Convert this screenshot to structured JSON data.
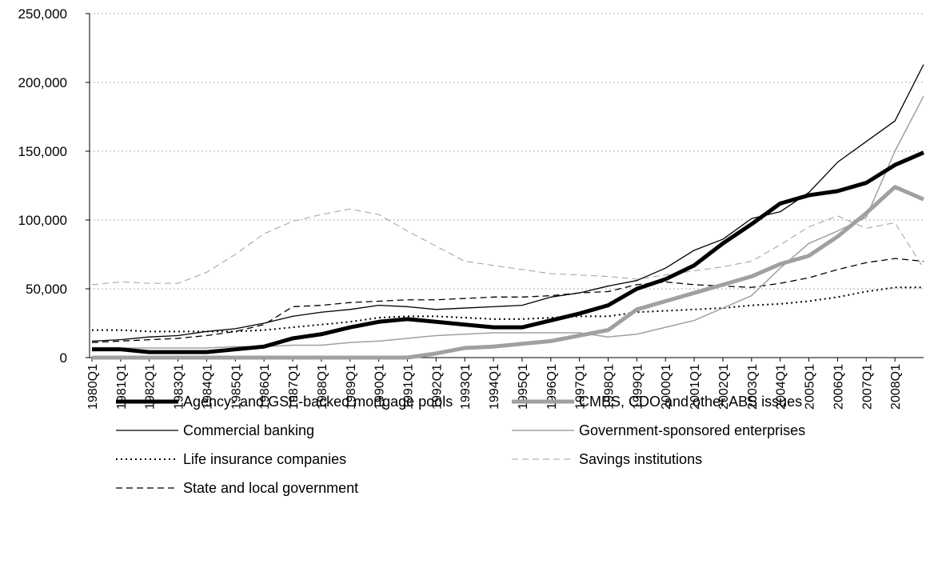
{
  "chart_data": {
    "type": "line",
    "categories": [
      "1980Q1",
      "1981Q1",
      "1982Q1",
      "1983Q1",
      "1984Q1",
      "1985Q1",
      "1986Q1",
      "1987Q1",
      "1988Q1",
      "1989Q1",
      "1990Q1",
      "1991Q1",
      "1992Q1",
      "1993Q1",
      "1994Q1",
      "1995Q1",
      "1996Q1",
      "1997Q1",
      "1998Q1",
      "1999Q1",
      "2000Q1",
      "2001Q1",
      "2002Q1",
      "2003Q1",
      "2004Q1",
      "2005Q1",
      "2006Q1",
      "2007Q1",
      "2008Q1",
      null
    ],
    "ylim": [
      0,
      250000
    ],
    "yticks": [
      0,
      {
        "value": 50000,
        "label": "50,000"
      },
      {
        "value": 100000,
        "label": "100,000"
      },
      {
        "value": 150000,
        "label": "150,000"
      },
      {
        "value": 200000,
        "label": "200,000"
      },
      {
        "value": 250000,
        "label": "250,000"
      }
    ],
    "grid": true,
    "series": [
      {
        "name": "Agency- and GSE-backed mortgage pools",
        "color": "#000000",
        "width": 5,
        "dash": "solid",
        "values": [
          6000,
          6000,
          4000,
          4000,
          4000,
          6000,
          8000,
          14000,
          17000,
          22000,
          26000,
          28000,
          26000,
          24000,
          22000,
          22000,
          27000,
          32000,
          38000,
          50000,
          57000,
          67000,
          83000,
          97000,
          112000,
          118000,
          121000,
          127000,
          140000,
          149000
        ]
      },
      {
        "name": "CMBS, CDO and other ABS issues",
        "color": "#a0a0a0",
        "width": 5,
        "dash": "solid",
        "values": [
          0,
          0,
          0,
          0,
          0,
          0,
          0,
          0,
          0,
          0,
          0,
          0,
          3000,
          7000,
          8000,
          10000,
          12000,
          16000,
          20000,
          35000,
          41000,
          47000,
          53000,
          59000,
          68000,
          74000,
          88000,
          105000,
          124000,
          115000
        ]
      },
      {
        "name": "Commercial banking",
        "color": "#000000",
        "width": 1.3,
        "dash": "solid",
        "values": [
          12000,
          13000,
          15000,
          16000,
          19000,
          21000,
          25000,
          30000,
          33000,
          35000,
          38000,
          37000,
          35000,
          36000,
          37000,
          38000,
          44000,
          47000,
          52000,
          56000,
          65000,
          78000,
          86000,
          101000,
          106000,
          120000,
          142000,
          157000,
          172000,
          213000
        ]
      },
      {
        "name": "Government-sponsored enterprises",
        "color": "#a0a0a0",
        "width": 1.5,
        "dash": "solid",
        "values": [
          7000,
          7000,
          7000,
          7000,
          7000,
          8000,
          8000,
          9000,
          9000,
          11000,
          12000,
          14000,
          16000,
          17000,
          18000,
          18000,
          18000,
          18000,
          15000,
          17000,
          22000,
          27000,
          36000,
          45000,
          65000,
          83000,
          92000,
          102000,
          150000,
          190000
        ]
      },
      {
        "name": "Life insurance companies",
        "color": "#000000",
        "width": 2,
        "dash": "dotted",
        "values": [
          20000,
          20000,
          19000,
          19000,
          19000,
          19000,
          20000,
          22000,
          24000,
          26000,
          29000,
          30000,
          30000,
          29000,
          28000,
          28000,
          29000,
          30000,
          30000,
          33000,
          34000,
          35000,
          36000,
          38000,
          39000,
          41000,
          44000,
          48000,
          51000,
          51000
        ]
      },
      {
        "name": "Savings institutions",
        "color": "#a0a0a0",
        "width": 1,
        "dash": "dashed",
        "values": [
          53000,
          55000,
          54000,
          54000,
          62000,
          75000,
          90000,
          99000,
          104000,
          108000,
          104000,
          92000,
          81000,
          70000,
          67000,
          64000,
          61000,
          60000,
          59000,
          57000,
          60000,
          63000,
          66000,
          70000,
          82000,
          95000,
          103000,
          94000,
          98000,
          65000
        ]
      },
      {
        "name": "State and local government",
        "color": "#000000",
        "width": 1.3,
        "dash": "dashed",
        "values": [
          11000,
          12000,
          13000,
          14000,
          16000,
          19000,
          24000,
          37000,
          38000,
          40000,
          41000,
          42000,
          42000,
          43000,
          44000,
          44000,
          45000,
          47000,
          48000,
          53000,
          55000,
          53000,
          52000,
          51000,
          54000,
          58000,
          64000,
          69000,
          72000,
          70000
        ]
      }
    ]
  }
}
